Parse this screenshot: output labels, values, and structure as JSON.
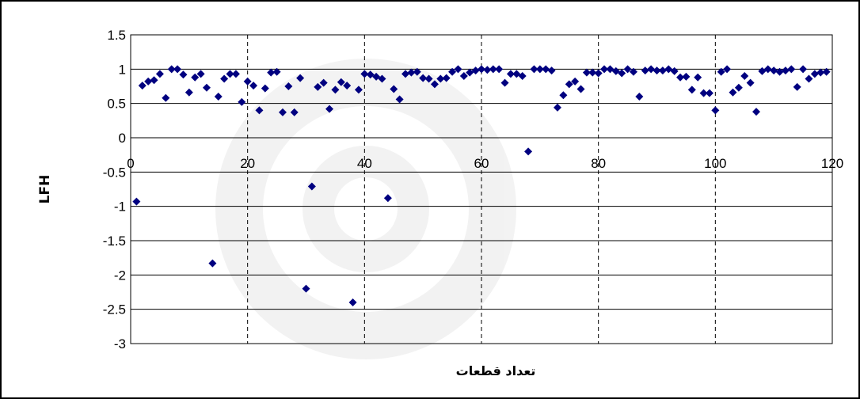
{
  "chart_data": {
    "type": "scatter",
    "title": "",
    "xlabel": "تعداد قطعات",
    "ylabel": "LFH",
    "xlim": [
      0,
      120
    ],
    "ylim": [
      -3,
      1.5
    ],
    "x_ticks": [
      "0",
      "20",
      "40",
      "60",
      "80",
      "100",
      "120"
    ],
    "y_ticks": [
      "1.5",
      "1",
      "0.5",
      "0",
      "-0.5",
      "-1",
      "-1.5",
      "-2",
      "-2.5",
      "-3"
    ],
    "grid": {
      "horizontal": true,
      "vertical_dashed": true
    },
    "legend": "none",
    "marker": "diamond",
    "marker_color": "#000080",
    "series": [
      {
        "x": [
          1,
          2,
          3,
          4,
          5,
          6,
          7,
          8,
          9,
          10,
          11,
          12,
          13,
          14,
          15,
          16,
          17,
          18,
          19,
          20,
          21,
          22,
          23,
          24,
          25,
          26,
          27,
          28,
          29,
          30,
          31,
          32,
          33,
          34,
          35,
          36,
          37,
          38,
          39,
          40,
          41,
          42,
          43,
          44,
          45,
          46,
          47,
          48,
          49,
          50,
          51,
          52,
          53,
          54,
          55,
          56,
          57,
          58,
          59,
          60,
          61,
          62,
          63,
          64,
          65,
          66,
          67,
          68,
          69,
          70,
          71,
          72,
          73,
          74,
          75,
          76,
          77,
          78,
          79,
          80,
          81,
          82,
          83,
          84,
          85,
          86,
          87,
          88,
          89,
          90,
          91,
          92,
          93,
          94,
          95,
          96,
          97,
          98,
          99,
          100,
          101,
          102,
          103,
          104,
          105,
          106,
          107,
          108,
          109,
          110,
          111,
          112,
          113,
          114,
          115,
          116,
          117,
          118,
          119
        ],
        "y": [
          -0.93,
          0.76,
          0.82,
          0.84,
          0.93,
          0.58,
          1.0,
          1.0,
          0.92,
          0.66,
          0.88,
          0.93,
          0.73,
          -1.83,
          0.6,
          0.86,
          0.93,
          0.93,
          0.52,
          0.82,
          0.76,
          0.4,
          0.72,
          0.95,
          0.96,
          0.37,
          0.75,
          0.37,
          0.87,
          -2.2,
          -0.71,
          0.74,
          0.8,
          0.42,
          0.7,
          0.81,
          0.76,
          -2.4,
          0.7,
          0.93,
          0.92,
          0.89,
          0.86,
          -0.88,
          0.71,
          0.56,
          0.93,
          0.95,
          0.96,
          0.87,
          0.86,
          0.78,
          0.86,
          0.87,
          0.96,
          1.0,
          0.9,
          0.95,
          0.98,
          1.0,
          0.99,
          1.0,
          1.0,
          0.8,
          0.93,
          0.93,
          0.9,
          -0.2,
          1.0,
          1.0,
          1.0,
          0.98,
          0.44,
          0.62,
          0.78,
          0.82,
          0.71,
          0.95,
          0.95,
          0.94,
          1.0,
          1.0,
          0.97,
          0.94,
          1.0,
          0.96,
          0.6,
          0.98,
          1.0,
          0.98,
          0.98,
          1.0,
          0.97,
          0.88,
          0.89,
          0.7,
          0.88,
          0.65,
          0.65,
          0.4,
          0.96,
          1.0,
          0.66,
          0.73,
          0.9,
          0.8,
          0.38,
          0.97,
          1.0,
          0.98,
          0.96,
          0.98,
          1.0,
          0.74,
          1.0,
          0.86,
          0.93,
          0.95,
          0.96
        ]
      }
    ]
  }
}
